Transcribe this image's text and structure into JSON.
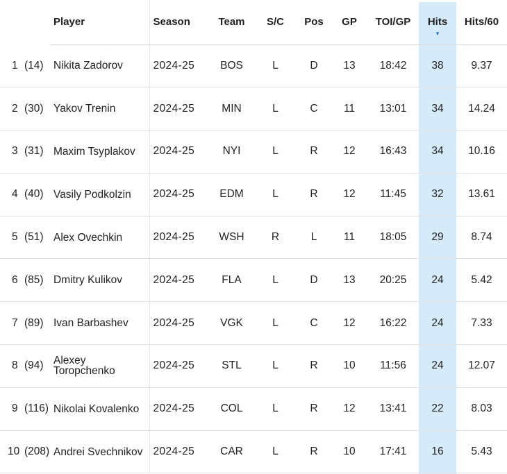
{
  "table": {
    "headers": {
      "player": "Player",
      "season": "Season",
      "team": "Team",
      "sc": "S/C",
      "pos": "Pos",
      "gp": "GP",
      "toigp": "TOI/GP",
      "hits": "Hits",
      "hits60": "Hits/60"
    },
    "sorted_column": "Hits",
    "sort_direction": "descending",
    "highlight_color": "#d6ebfa",
    "sort_arrow_color": "#2e73c9",
    "rows": [
      {
        "rank": "1",
        "prev": "(14)",
        "player": "Nikita Zadorov",
        "season": "2024-25",
        "team": "BOS",
        "sc": "L",
        "pos": "D",
        "gp": "13",
        "toigp": "18:42",
        "hits": "38",
        "hits60": "9.37"
      },
      {
        "rank": "2",
        "prev": "(30)",
        "player": "Yakov Trenin",
        "season": "2024-25",
        "team": "MIN",
        "sc": "L",
        "pos": "C",
        "gp": "11",
        "toigp": "13:01",
        "hits": "34",
        "hits60": "14.24"
      },
      {
        "rank": "3",
        "prev": "(31)",
        "player": "Maxim Tsyplakov",
        "season": "2024-25",
        "team": "NYI",
        "sc": "L",
        "pos": "R",
        "gp": "12",
        "toigp": "16:43",
        "hits": "34",
        "hits60": "10.16"
      },
      {
        "rank": "4",
        "prev": "(40)",
        "player": "Vasily Podkolzin",
        "season": "2024-25",
        "team": "EDM",
        "sc": "L",
        "pos": "R",
        "gp": "12",
        "toigp": "11:45",
        "hits": "32",
        "hits60": "13.61"
      },
      {
        "rank": "5",
        "prev": "(51)",
        "player": "Alex Ovechkin",
        "season": "2024-25",
        "team": "WSH",
        "sc": "R",
        "pos": "L",
        "gp": "11",
        "toigp": "18:05",
        "hits": "29",
        "hits60": "8.74"
      },
      {
        "rank": "6",
        "prev": "(85)",
        "player": "Dmitry Kulikov",
        "season": "2024-25",
        "team": "FLA",
        "sc": "L",
        "pos": "D",
        "gp": "13",
        "toigp": "20:25",
        "hits": "24",
        "hits60": "5.42"
      },
      {
        "rank": "7",
        "prev": "(89)",
        "player": "Ivan Barbashev",
        "season": "2024-25",
        "team": "VGK",
        "sc": "L",
        "pos": "C",
        "gp": "12",
        "toigp": "16:22",
        "hits": "24",
        "hits60": "7.33"
      },
      {
        "rank": "8",
        "prev": "(94)",
        "player": "Alexey Toropchenko",
        "season": "2024-25",
        "team": "STL",
        "sc": "L",
        "pos": "R",
        "gp": "10",
        "toigp": "11:56",
        "hits": "24",
        "hits60": "12.07"
      },
      {
        "rank": "9",
        "prev": "(116)",
        "player": "Nikolai Kovalenko",
        "season": "2024-25",
        "team": "COL",
        "sc": "L",
        "pos": "R",
        "gp": "12",
        "toigp": "13:41",
        "hits": "22",
        "hits60": "8.03"
      },
      {
        "rank": "10",
        "prev": "(208)",
        "player": "Andrei Svechnikov",
        "season": "2024-25",
        "team": "CAR",
        "sc": "L",
        "pos": "R",
        "gp": "10",
        "toigp": "17:41",
        "hits": "16",
        "hits60": "5.43"
      }
    ]
  }
}
